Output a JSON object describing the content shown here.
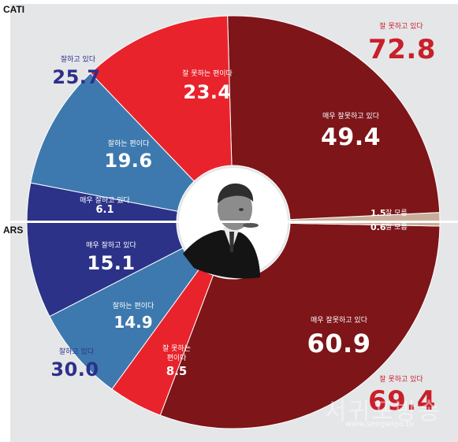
{
  "section_labels": {
    "top": "CATI",
    "bottom": "ARS"
  },
  "colors": {
    "very_bad": "#7d1519",
    "bad": "#e8232c",
    "good": "#3d79ae",
    "very_good": "#2b3287",
    "dont_know": "#c9ad9b",
    "panel": "#e5e6e8"
  },
  "chart_data": [
    {
      "type": "donut",
      "name": "CATI",
      "series": [
        {
          "label": "매우 잘못하고 있다",
          "value": 49.4,
          "color": "#7d1519"
        },
        {
          "label": "잘 못하는 편이다",
          "value": 23.4,
          "color": "#e8232c"
        },
        {
          "label": "잘하는 편이다",
          "value": 19.6,
          "color": "#3d79ae"
        },
        {
          "label": "매우 잘하고 있다",
          "value": 6.1,
          "color": "#2b3287"
        },
        {
          "label": "잘 모름",
          "value": 1.5,
          "color": "#c9ad9b"
        }
      ],
      "totals": [
        {
          "label": "잘 못하고 있다",
          "value": "72.8"
        },
        {
          "label": "잘하고 있다",
          "value": "25.7"
        }
      ]
    },
    {
      "type": "donut",
      "name": "ARS",
      "series": [
        {
          "label": "매우 잘하고 있다",
          "value": 15.1,
          "color": "#2b3287"
        },
        {
          "label": "잘하는 편이다",
          "value": 14.9,
          "color": "#3d79ae"
        },
        {
          "label": "잘 못하는 편이다",
          "value": 8.5,
          "color": "#e8232c"
        },
        {
          "label": "매우 잘못하고 있다",
          "value": 60.9,
          "color": "#7d1519"
        },
        {
          "label": "잘 모름",
          "value": 0.6,
          "color": "#c9ad9b"
        }
      ],
      "totals": [
        {
          "label": "잘하고 있다",
          "value": "30.0"
        },
        {
          "label": "잘 못하고 있다",
          "value": "69.4"
        }
      ]
    }
  ],
  "labels": {
    "cati_bad_total_label": "잘 못하고 있다",
    "cati_bad_total_value": "72.8",
    "cati_good_total_label": "잘하고 있다",
    "cati_good_total_value": "25.7",
    "cati_verybad_label": "매우 잘못하고 있다",
    "cati_verybad_value": "49.4",
    "cati_bad_label": "잘 못하는 편이다",
    "cati_bad_value": "23.4",
    "cati_good_label": "잘하는 편이다",
    "cati_good_value": "19.6",
    "cati_verygood_label": "매우 잘하고 있다",
    "cati_verygood_value": "6.1",
    "cati_dk_value": "1.5",
    "cati_dk_label": "잘 모름",
    "ars_dk_value": "0.6",
    "ars_dk_label": "잘 모름",
    "ars_verygood_label": "매우 잘하고 있다",
    "ars_verygood_value": "15.1",
    "ars_good_label": "잘하는 편이다",
    "ars_good_value": "14.9",
    "ars_bad_label_1": "잘 못하는",
    "ars_bad_label_2": "편이다",
    "ars_bad_value": "8.5",
    "ars_verybad_label": "매우 잘못하고 있다",
    "ars_verybad_value": "60.9",
    "ars_good_total_label": "잘하고 있다",
    "ars_good_total_value": "30.0",
    "ars_bad_total_label": "잘 못하고 있다",
    "ars_bad_total_value": "69.4"
  },
  "watermark": {
    "main": "서귀포방송",
    "url": "www.seogwipo.tv"
  }
}
